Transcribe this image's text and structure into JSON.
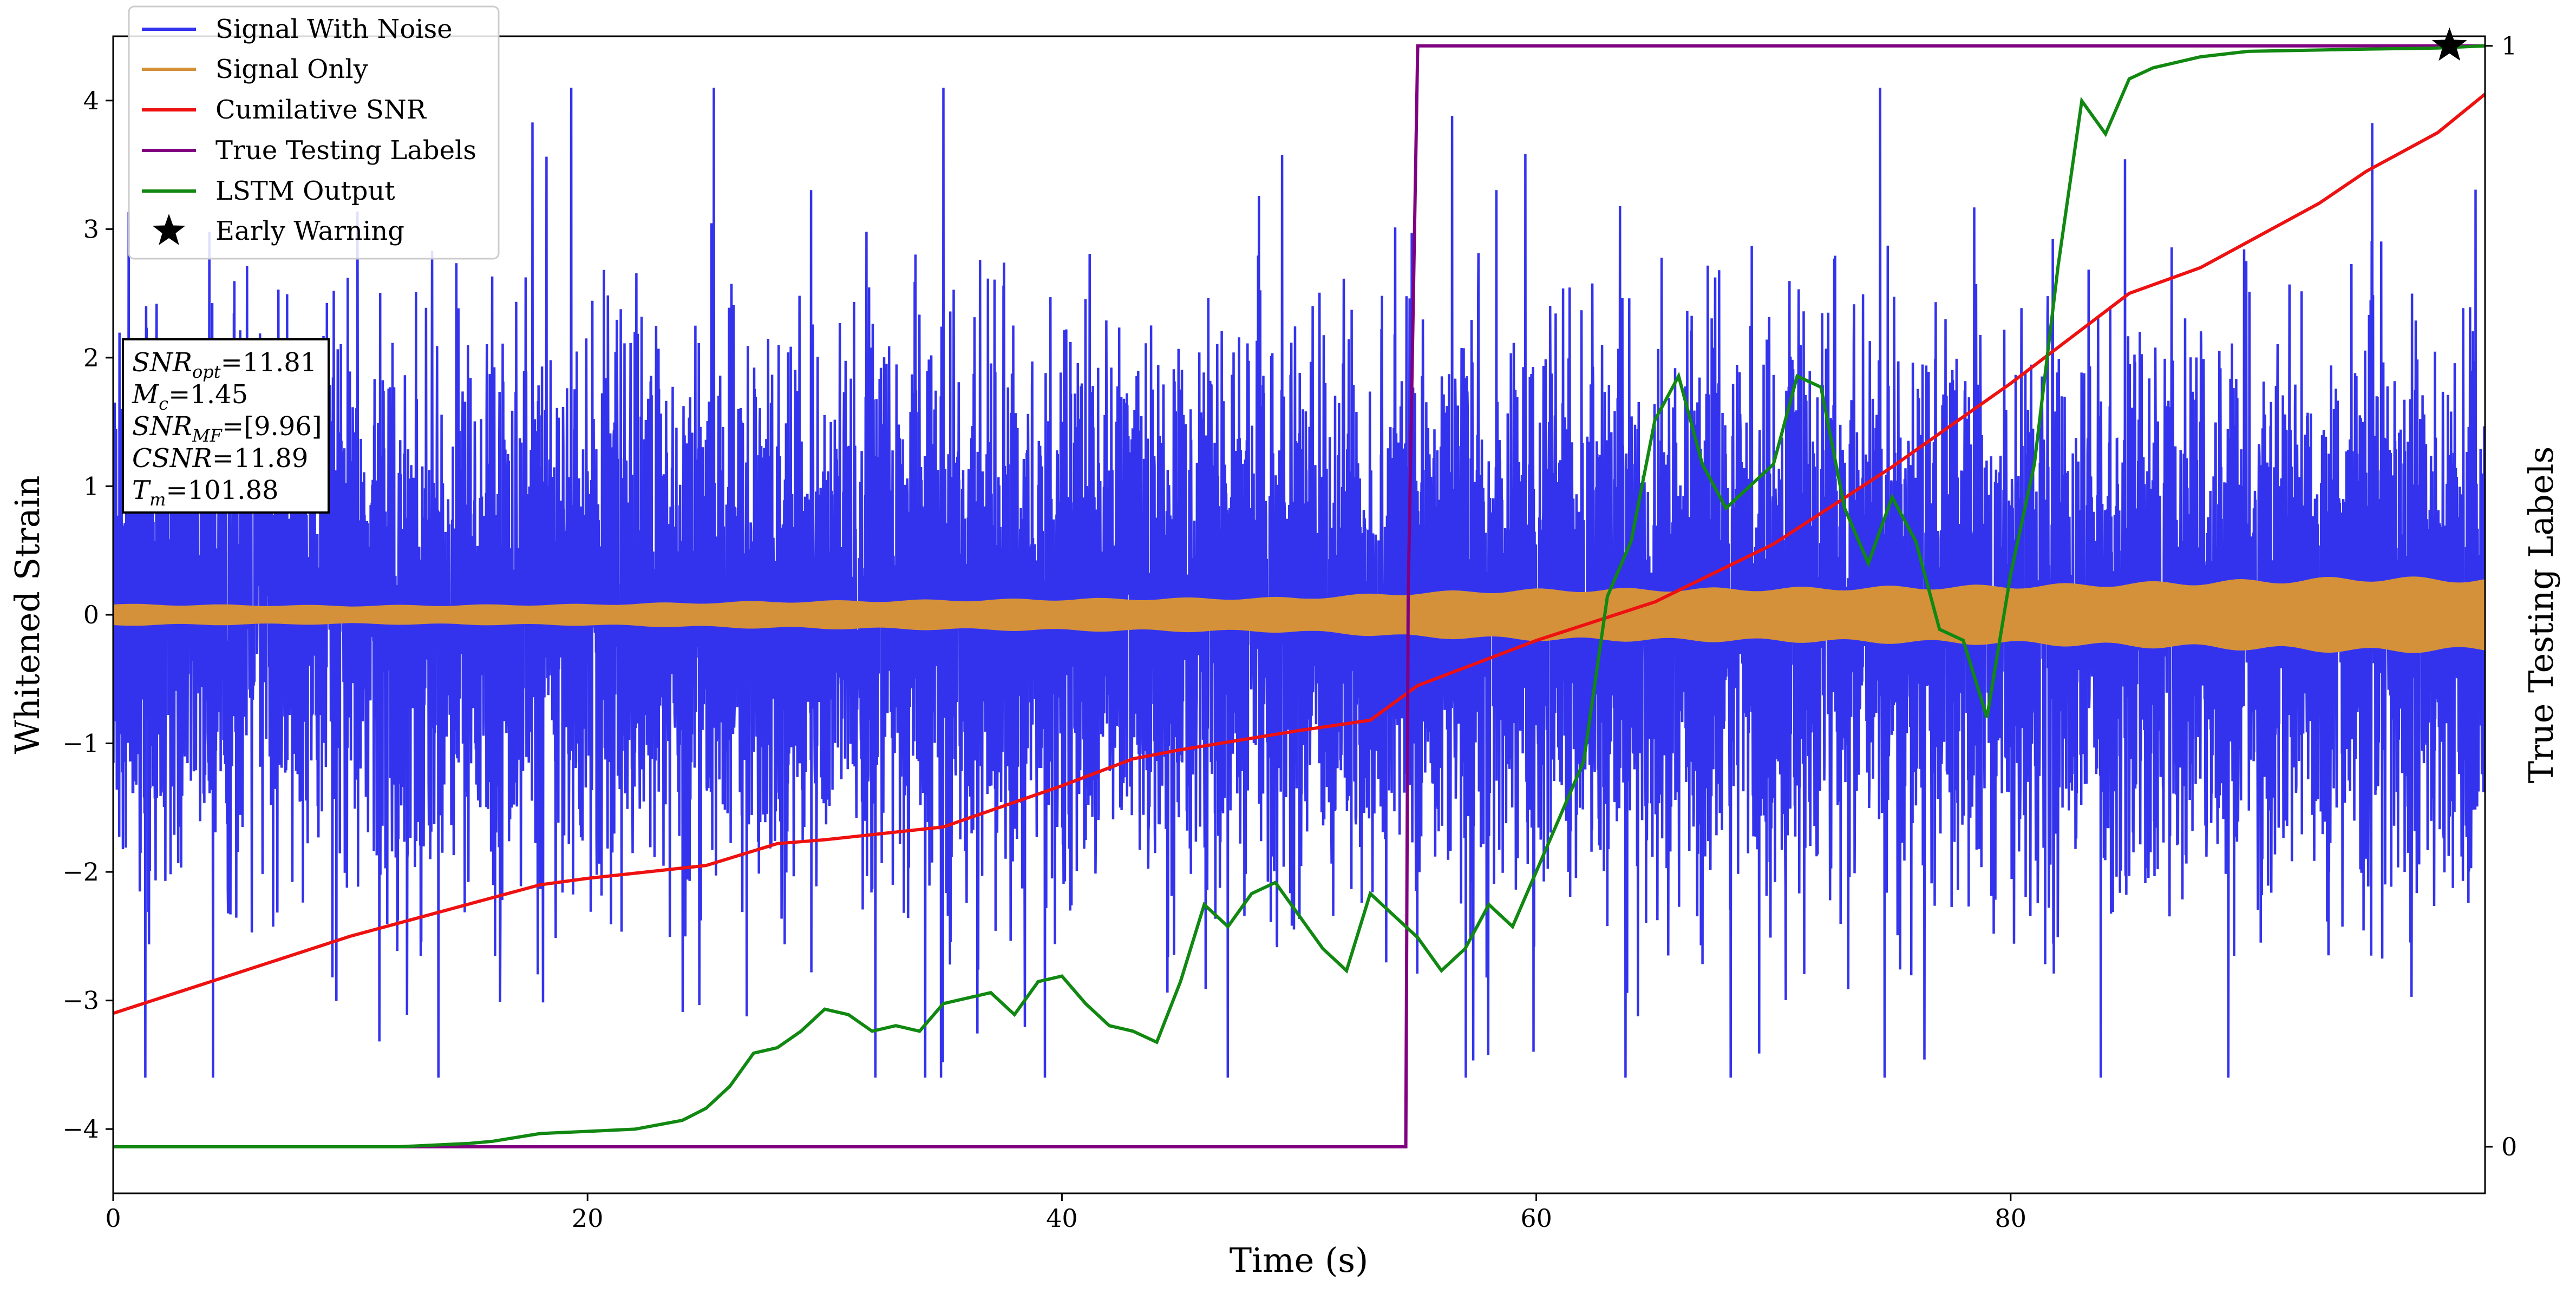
{
  "chart_data": {
    "type": "line",
    "xlabel": "Time (s)",
    "ylabel": "Whitened Strain",
    "y2label": "True Testing Labels",
    "xlim": [
      0,
      100
    ],
    "ylim": [
      -4.5,
      4.5
    ],
    "y2lim": [
      -0.0423,
      1.0087
    ],
    "xticks": [
      0,
      20,
      40,
      60,
      80
    ],
    "yticks": [
      -4,
      -3,
      -2,
      -1,
      0,
      1,
      2,
      3,
      4
    ],
    "y2ticks": [
      0,
      1
    ],
    "colors": {
      "signal_with_noise": "#3333ee",
      "signal_only": "#d4913a",
      "cumulative_snr": "#ee1111",
      "true_labels": "#800080",
      "lstm_output": "#118811",
      "early_warning": "#000000"
    },
    "legend_position": "top-left",
    "legend": [
      "Signal With Noise",
      "Signal Only",
      "Cumilative SNR",
      "True Testing Labels",
      "LSTM Output",
      "Early Warning"
    ],
    "series": [
      {
        "name": "Signal With Noise",
        "axis": "left",
        "noise_amplitude_range": [
          -3.6,
          4.1
        ],
        "x_range": [
          0,
          100
        ]
      },
      {
        "name": "Signal Only",
        "axis": "left",
        "envelope_x": [
          0,
          10,
          20,
          27,
          40,
          50,
          55,
          60,
          70,
          80,
          88,
          95,
          100
        ],
        "envelope_amplitude": [
          0.08,
          0.07,
          0.08,
          0.1,
          0.12,
          0.13,
          0.17,
          0.19,
          0.2,
          0.22,
          0.25,
          0.28,
          0.27
        ]
      },
      {
        "name": "Cumilative SNR",
        "axis": "left",
        "x": [
          0,
          5,
          10,
          15,
          18,
          20,
          25,
          28,
          30,
          35,
          40,
          43,
          45,
          50,
          53,
          55,
          60,
          65,
          70,
          75,
          80,
          85,
          88,
          90,
          93,
          95,
          98,
          100
        ],
        "y": [
          -3.1,
          -2.8,
          -2.5,
          -2.25,
          -2.1,
          -2.05,
          -1.95,
          -1.78,
          -1.75,
          -1.65,
          -1.33,
          -1.12,
          -1.05,
          -0.9,
          -0.82,
          -0.55,
          -0.2,
          0.1,
          0.55,
          1.15,
          1.8,
          2.5,
          2.7,
          2.9,
          3.2,
          3.45,
          3.75,
          4.05
        ]
      },
      {
        "name": "True Testing Labels",
        "axis": "right",
        "x": [
          0,
          54.4,
          54.5,
          54.6,
          55.0,
          100
        ],
        "y": [
          0,
          0,
          0,
          0.5,
          1,
          1
        ]
      },
      {
        "name": "LSTM Output",
        "axis": "right",
        "x": [
          0,
          12,
          15,
          16,
          18,
          20,
          22,
          24,
          25,
          26,
          27,
          28,
          29,
          30,
          31,
          32,
          33,
          34,
          35,
          36,
          37,
          38,
          39,
          40,
          41,
          42,
          43,
          44,
          45,
          46,
          47,
          48,
          49,
          50,
          51,
          52,
          53,
          54,
          55,
          56,
          57,
          58,
          59,
          60,
          61,
          62,
          63,
          64,
          65,
          66,
          67,
          68,
          69,
          70,
          71,
          72,
          73,
          74,
          75,
          76,
          77,
          78,
          79,
          80,
          81,
          82,
          83,
          84,
          85,
          86,
          88,
          90,
          95,
          98,
          100
        ],
        "y": [
          0,
          0,
          0.003,
          0.005,
          0.012,
          0.014,
          0.016,
          0.024,
          0.035,
          0.055,
          0.085,
          0.09,
          0.105,
          0.125,
          0.12,
          0.105,
          0.11,
          0.105,
          0.13,
          0.135,
          0.14,
          0.12,
          0.15,
          0.155,
          0.13,
          0.11,
          0.105,
          0.095,
          0.15,
          0.22,
          0.2,
          0.23,
          0.24,
          0.21,
          0.18,
          0.16,
          0.23,
          0.21,
          0.19,
          0.16,
          0.18,
          0.22,
          0.2,
          0.25,
          0.3,
          0.35,
          0.5,
          0.55,
          0.66,
          0.7,
          0.62,
          0.58,
          0.6,
          0.62,
          0.7,
          0.69,
          0.58,
          0.53,
          0.59,
          0.55,
          0.47,
          0.46,
          0.39,
          0.52,
          0.62,
          0.8,
          0.95,
          0.92,
          0.97,
          0.98,
          0.99,
          0.995,
          0.997,
          0.998,
          1.0
        ]
      },
      {
        "name": "Early Warning",
        "axis": "right",
        "x": [
          98.5
        ],
        "y": [
          1.0
        ]
      }
    ],
    "info_box": {
      "lines": [
        "SNR_opt=11.81",
        "M_c=1.45",
        "SNR_MF=[9.96]",
        "CSNR=11.89",
        "T_m=101.88"
      ],
      "values": {
        "snr_opt": "11.81",
        "m_c": "1.45",
        "snr_mf": "[9.96]",
        "csnr": "11.89",
        "t_m": "101.88"
      }
    }
  }
}
